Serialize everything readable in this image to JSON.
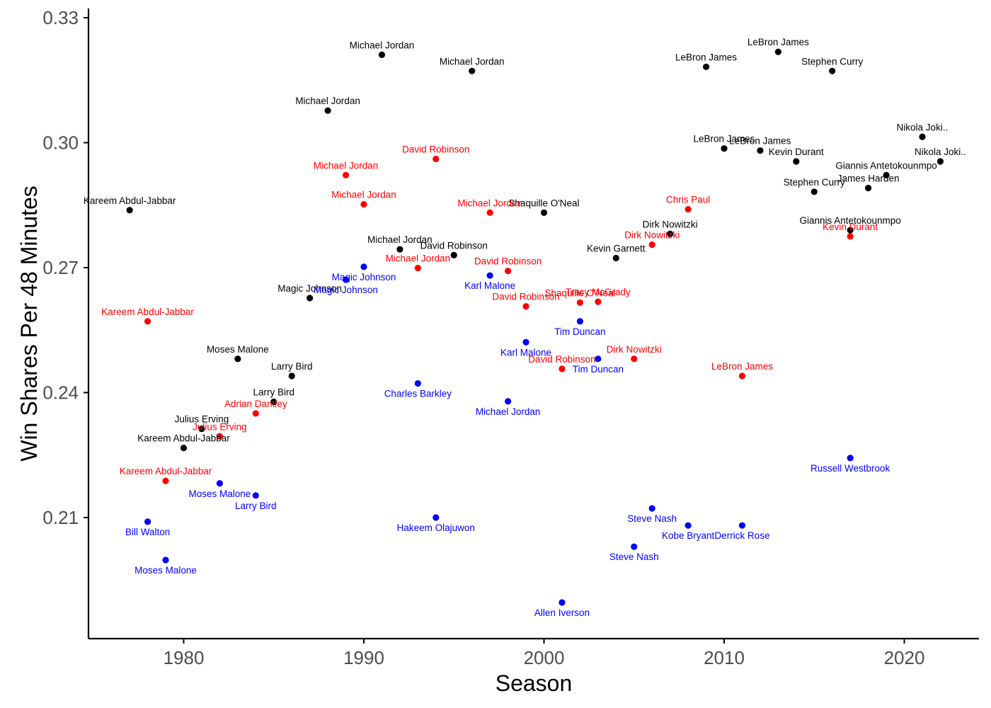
{
  "chart_data": {
    "type": "scatter",
    "title": "",
    "xlabel": "Season",
    "ylabel": "Win Shares Per 48 Minutes",
    "xlim": [
      1975,
      2024
    ],
    "ylim": [
      0.17,
      0.333
    ],
    "x_ticks": [
      1980,
      1990,
      2000,
      2010,
      2020
    ],
    "x_tick_labels": [
      "1980",
      "1990",
      "2000",
      "2010",
      "2020"
    ],
    "y_ticks": [
      0.21,
      0.24,
      0.27,
      0.3,
      0.33
    ],
    "y_tick_labels": [
      "0.21",
      "0.24",
      "0.27",
      "0.30",
      "0.33"
    ],
    "grid": false,
    "legend": "none",
    "colors": {
      "black": "#000000",
      "red": "#ff0000",
      "blue": "#0000ff"
    },
    "series": [
      {
        "color": "black",
        "label_position": "above",
        "points": [
          {
            "x": 1977,
            "y": 0.2838,
            "label": "Kareem Abdul-Jabbar"
          },
          {
            "x": 1980,
            "y": 0.2267,
            "label": "Kareem Abdul-Jabbar"
          },
          {
            "x": 1981,
            "y": 0.2313,
            "label": "Julius Erving"
          },
          {
            "x": 1983,
            "y": 0.2481,
            "label": "Moses Malone"
          },
          {
            "x": 1985,
            "y": 0.2378,
            "label": "Larry Bird"
          },
          {
            "x": 1986,
            "y": 0.244,
            "label": "Larry Bird"
          },
          {
            "x": 1987,
            "y": 0.2627,
            "label": "Magic Johnson"
          },
          {
            "x": 1988,
            "y": 0.3077,
            "label": "Michael Jordan"
          },
          {
            "x": 1991,
            "y": 0.3211,
            "label": "Michael Jordan"
          },
          {
            "x": 1992,
            "y": 0.2744,
            "label": "Michael Jordan"
          },
          {
            "x": 1995,
            "y": 0.273,
            "label": "David Robinson"
          },
          {
            "x": 1996,
            "y": 0.3172,
            "label": "Michael Jordan"
          },
          {
            "x": 2000,
            "y": 0.2832,
            "label": "Shaquille O'Neal"
          },
          {
            "x": 2004,
            "y": 0.2723,
            "label": "Kevin Garnett"
          },
          {
            "x": 2007,
            "y": 0.2781,
            "label": "Dirk Nowitzki"
          },
          {
            "x": 2009,
            "y": 0.3182,
            "label": "LeBron James"
          },
          {
            "x": 2010,
            "y": 0.2986,
            "label": "LeBron James"
          },
          {
            "x": 2012,
            "y": 0.2981,
            "label": "LeBron James"
          },
          {
            "x": 2013,
            "y": 0.3218,
            "label": "LeBron James"
          },
          {
            "x": 2014,
            "y": 0.2955,
            "label": "Kevin Durant"
          },
          {
            "x": 2015,
            "y": 0.2882,
            "label": "Stephen Curry"
          },
          {
            "x": 2016,
            "y": 0.3172,
            "label": "Stephen Curry"
          },
          {
            "x": 2017,
            "y": 0.279,
            "label": "Giannis Antetokounmpo"
          },
          {
            "x": 2018,
            "y": 0.2891,
            "label": "James Harden"
          },
          {
            "x": 2019,
            "y": 0.2922,
            "label": "Giannis Antetokounmpo"
          },
          {
            "x": 2021,
            "y": 0.3014,
            "label": "Nikola Joki.."
          },
          {
            "x": 2022,
            "y": 0.2955,
            "label": "Nikola Joki.."
          }
        ]
      },
      {
        "color": "red",
        "label_position": "above",
        "points": [
          {
            "x": 1978,
            "y": 0.2571,
            "label": "Kareem Abdul-Jabbar"
          },
          {
            "x": 1979,
            "y": 0.2188,
            "label": "Kareem Abdul-Jabbar"
          },
          {
            "x": 1982,
            "y": 0.2295,
            "label": "Julius Erving"
          },
          {
            "x": 1984,
            "y": 0.235,
            "label": "Adrian Dantley"
          },
          {
            "x": 1989,
            "y": 0.2922,
            "label": "Michael Jordan"
          },
          {
            "x": 1990,
            "y": 0.2852,
            "label": "Michael Jordan"
          },
          {
            "x": 1993,
            "y": 0.2699,
            "label": "Michael Jordan"
          },
          {
            "x": 1994,
            "y": 0.2961,
            "label": "David Robinson"
          },
          {
            "x": 1997,
            "y": 0.2832,
            "label": "Michael Jordan"
          },
          {
            "x": 1998,
            "y": 0.2692,
            "label": "David Robinson"
          },
          {
            "x": 1999,
            "y": 0.2607,
            "label": "David Robinson"
          },
          {
            "x": 2001,
            "y": 0.2457,
            "label": "David Robinson"
          },
          {
            "x": 2002,
            "y": 0.2616,
            "label": "Shaquille O'Neal"
          },
          {
            "x": 2003,
            "y": 0.2618,
            "label": "Tracy McGrady"
          },
          {
            "x": 2005,
            "y": 0.2481,
            "label": "Dirk Nowitzki"
          },
          {
            "x": 2006,
            "y": 0.2755,
            "label": "Dirk Nowitzki"
          },
          {
            "x": 2008,
            "y": 0.284,
            "label": "Chris Paul"
          },
          {
            "x": 2011,
            "y": 0.244,
            "label": "LeBron James"
          },
          {
            "x": 2017,
            "y": 0.2775,
            "label": "Kevin Durant"
          }
        ]
      },
      {
        "color": "blue",
        "label_position": "below",
        "points": [
          {
            "x": 1978,
            "y": 0.209,
            "label": "Bill Walton"
          },
          {
            "x": 1979,
            "y": 0.1998,
            "label": "Moses Malone"
          },
          {
            "x": 1982,
            "y": 0.2182,
            "label": "Moses Malone"
          },
          {
            "x": 1984,
            "y": 0.2153,
            "label": "Larry Bird"
          },
          {
            "x": 1989,
            "y": 0.2671,
            "label": "Magic Johnson"
          },
          {
            "x": 1990,
            "y": 0.2702,
            "label": "Magic Johnson"
          },
          {
            "x": 1993,
            "y": 0.2422,
            "label": "Charles Barkley"
          },
          {
            "x": 1994,
            "y": 0.21,
            "label": "Hakeem Olajuwon"
          },
          {
            "x": 1997,
            "y": 0.2681,
            "label": "Karl Malone"
          },
          {
            "x": 1998,
            "y": 0.2379,
            "label": "Michael Jordan"
          },
          {
            "x": 1999,
            "y": 0.2521,
            "label": "Karl Malone"
          },
          {
            "x": 2001,
            "y": 0.1896,
            "label": "Allen Iverson"
          },
          {
            "x": 2002,
            "y": 0.2571,
            "label": "Tim Duncan"
          },
          {
            "x": 2003,
            "y": 0.2481,
            "label": "Tim Duncan"
          },
          {
            "x": 2005,
            "y": 0.203,
            "label": "Steve Nash"
          },
          {
            "x": 2006,
            "y": 0.2122,
            "label": "Steve Nash"
          },
          {
            "x": 2008,
            "y": 0.2081,
            "label": "Kobe Bryant"
          },
          {
            "x": 2011,
            "y": 0.2081,
            "label": "Derrick Rose"
          },
          {
            "x": 2017,
            "y": 0.2243,
            "label": "Russell Westbrook"
          }
        ]
      }
    ]
  }
}
